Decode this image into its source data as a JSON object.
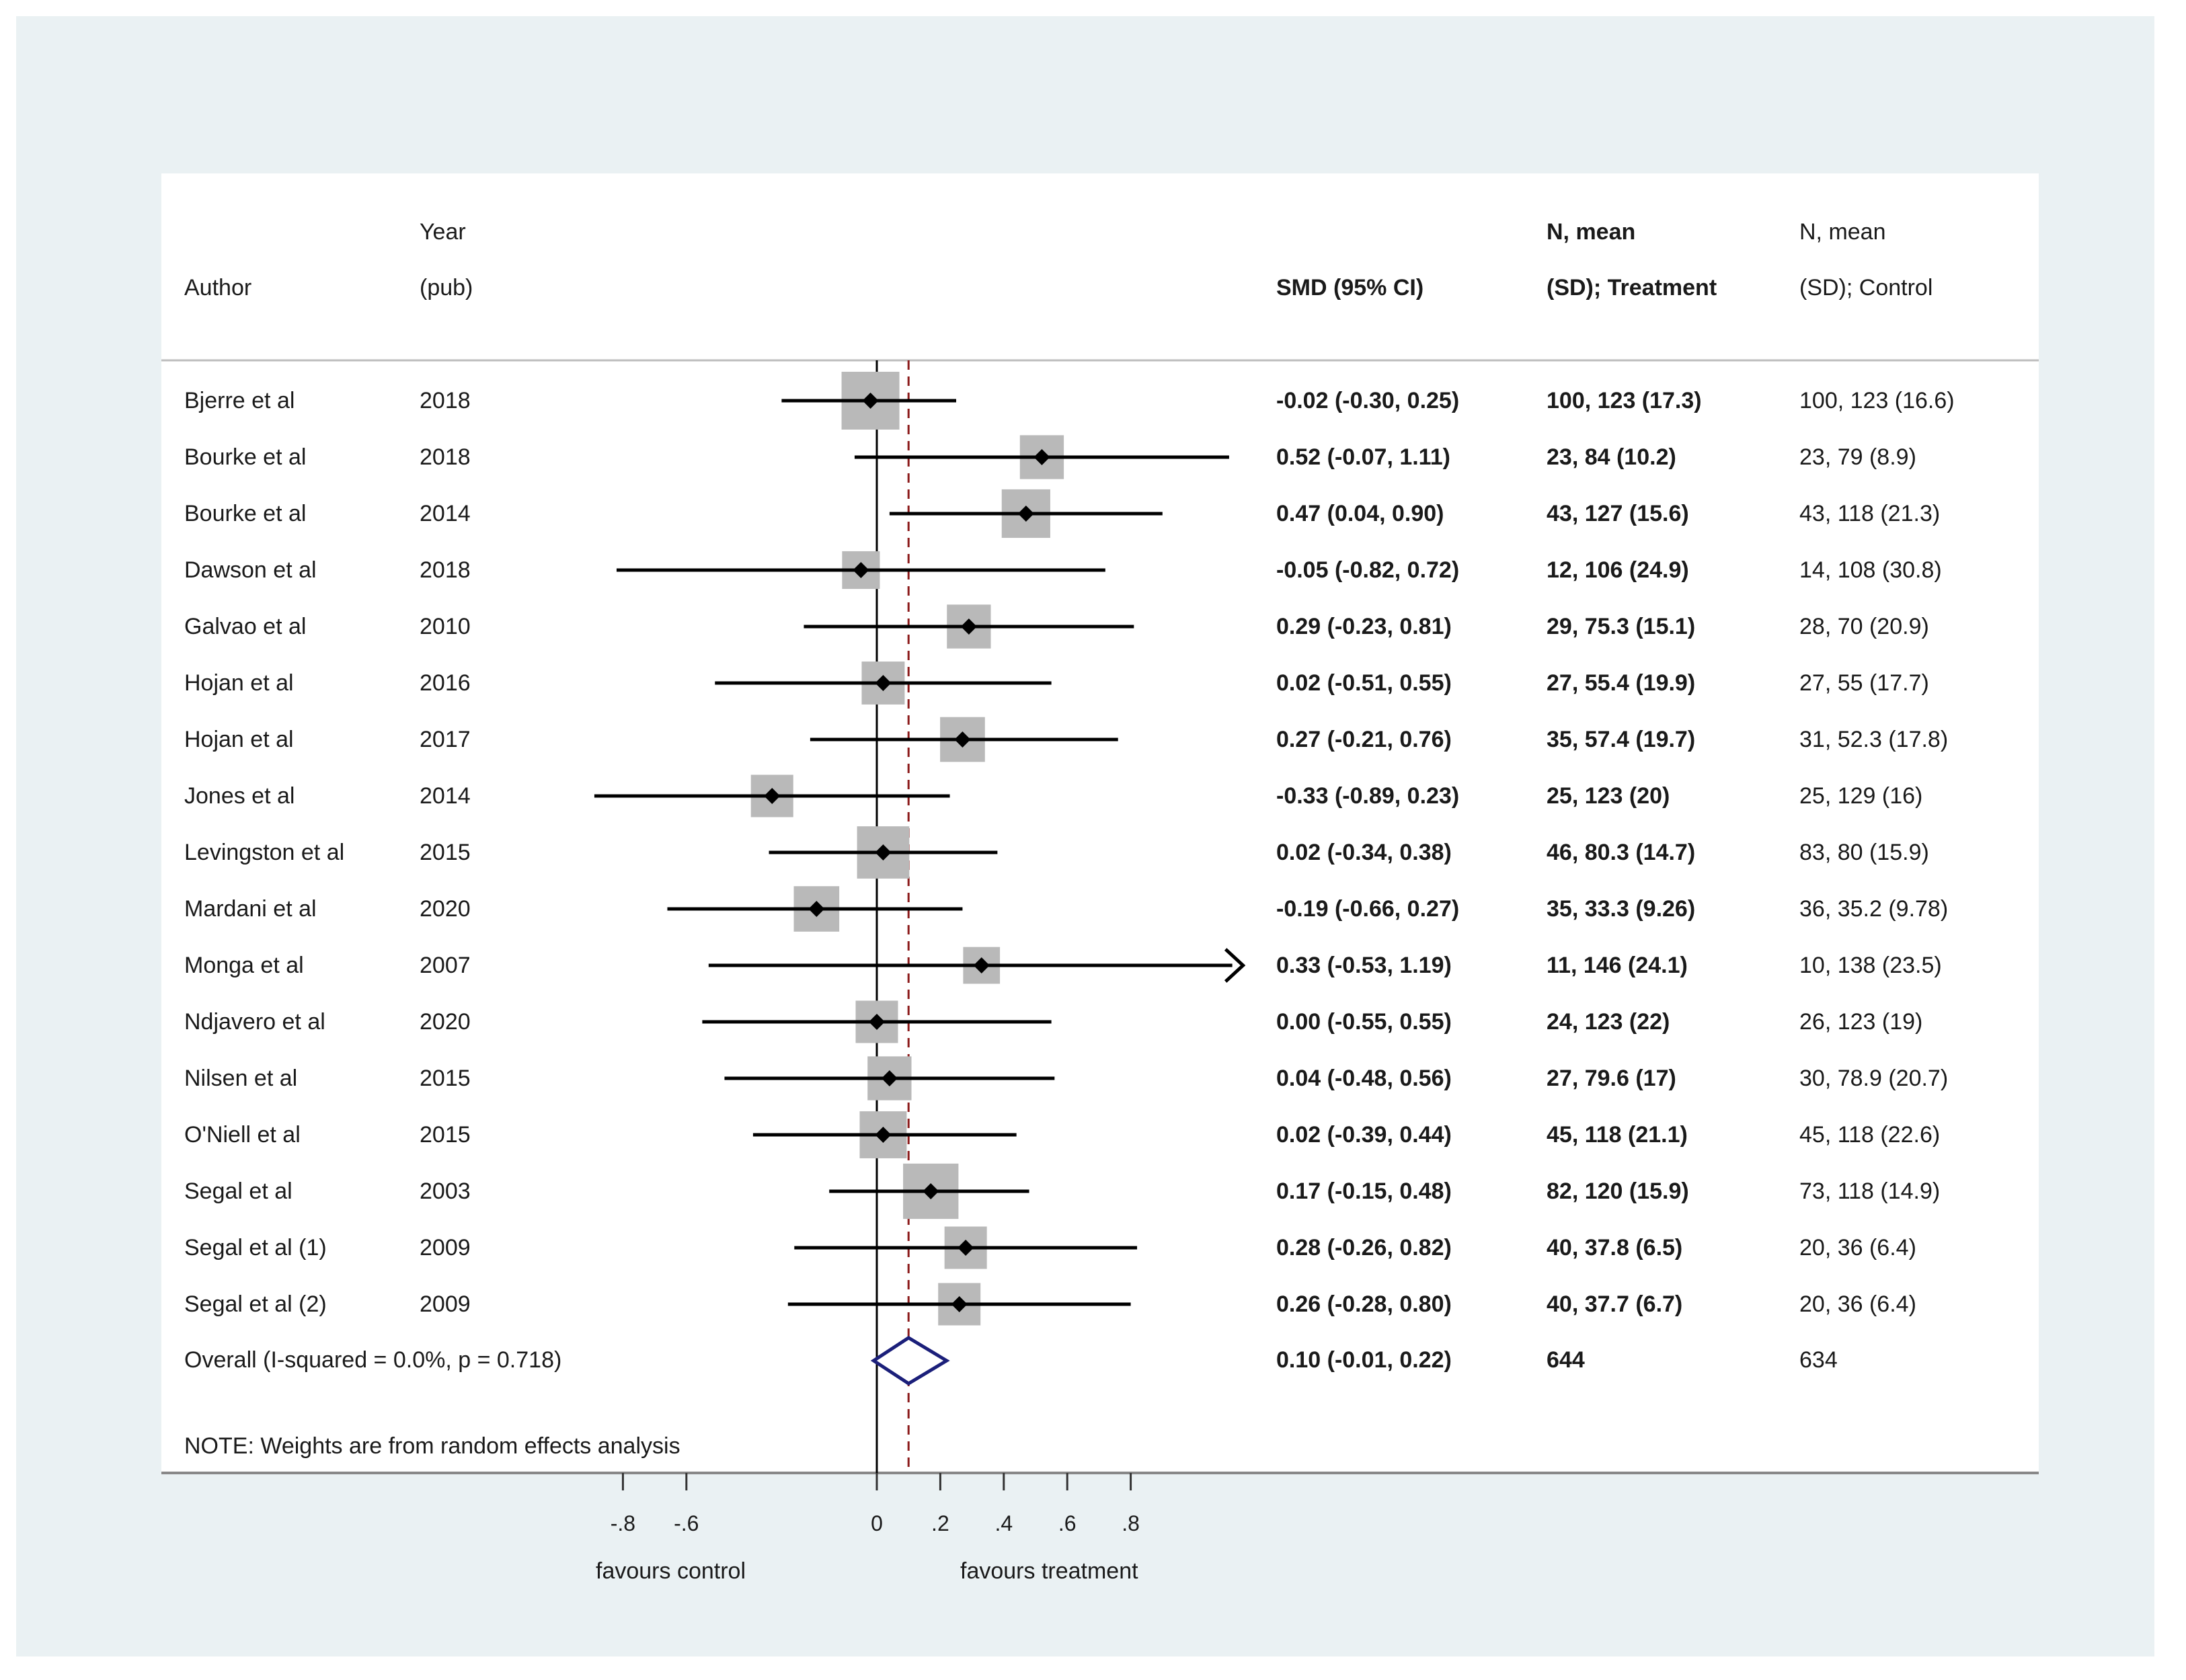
{
  "colors": {
    "background": "#eaf1f3",
    "panel": "#ffffff",
    "marker_box": "#b9b9b9",
    "line": "#000000",
    "reference_line": "#8b1a1a",
    "overall_diamond": "#1b1f7a"
  },
  "headers": {
    "author": "Author",
    "year_line1": "Year",
    "year_line2": "(pub)",
    "smd": "SMD (95% CI)",
    "treatment_line1": "N, mean",
    "treatment_line2": "(SD); Treatment",
    "control_line1": "N, mean",
    "control_line2": "(SD); Control"
  },
  "chart_data": {
    "type": "forest",
    "effect_measure": "SMD",
    "null_value": 0,
    "overall_reference_value": 0.1,
    "x_ticks": [
      -0.8,
      -0.6,
      0,
      0.2,
      0.4,
      0.6,
      0.8
    ],
    "x_tick_labels": [
      "-.8",
      "-.6",
      "0",
      ".2",
      ".4",
      ".6",
      ".8"
    ],
    "left_direction_label": "favours control",
    "right_direction_label": "favours treatment",
    "studies": [
      {
        "author": "Bjerre et al",
        "year": "2018",
        "smd": -0.02,
        "lower": -0.3,
        "upper": 0.25,
        "ci_text": "-0.02 (-0.30, 0.25)",
        "treatment": "100, 123 (17.3)",
        "control": "100, 123 (16.6)",
        "weight_rel": 1.0
      },
      {
        "author": "Bourke et al",
        "year": "2018",
        "smd": 0.52,
        "lower": -0.07,
        "upper": 1.11,
        "ci_text": "0.52 (-0.07, 1.11)",
        "treatment": "23, 84 (10.2)",
        "control": "23, 79 (8.9)",
        "weight_rel": 0.55
      },
      {
        "author": "Bourke et al",
        "year": "2014",
        "smd": 0.47,
        "lower": 0.04,
        "upper": 0.9,
        "ci_text": "0.47 (0.04, 0.90)",
        "treatment": "43, 127 (15.6)",
        "control": "43, 118 (21.3)",
        "weight_rel": 0.7
      },
      {
        "author": "Dawson et al",
        "year": "2018",
        "smd": -0.05,
        "lower": -0.82,
        "upper": 0.72,
        "ci_text": "-0.05 (-0.82, 0.72)",
        "treatment": "12, 106 (24.9)",
        "control": "14, 108 (30.8)",
        "weight_rel": 0.35
      },
      {
        "author": "Galvao et al",
        "year": "2010",
        "smd": 0.29,
        "lower": -0.23,
        "upper": 0.81,
        "ci_text": "0.29 (-0.23, 0.81)",
        "treatment": "29, 75.3 (15.1)",
        "control": "28, 70 (20.9)",
        "weight_rel": 0.55
      },
      {
        "author": "Hojan et al",
        "year": "2016",
        "smd": 0.02,
        "lower": -0.51,
        "upper": 0.55,
        "ci_text": "0.02 (-0.51, 0.55)",
        "treatment": "27, 55.4 (19.9)",
        "control": "27, 55 (17.7)",
        "weight_rel": 0.52
      },
      {
        "author": "Hojan et al",
        "year": "2017",
        "smd": 0.27,
        "lower": -0.21,
        "upper": 0.76,
        "ci_text": "0.27 (-0.21, 0.76)",
        "treatment": "35, 57.4 (19.7)",
        "control": "31, 52.3 (17.8)",
        "weight_rel": 0.58
      },
      {
        "author": "Jones et al",
        "year": "2014",
        "smd": -0.33,
        "lower": -0.89,
        "upper": 0.23,
        "ci_text": "-0.33 (-0.89, 0.23)",
        "treatment": "25, 123 (20)",
        "control": "25, 129 (16)",
        "weight_rel": 0.5
      },
      {
        "author": "Levingston et al",
        "year": "2015",
        "smd": 0.02,
        "lower": -0.34,
        "upper": 0.38,
        "ci_text": "0.02 (-0.34, 0.38)",
        "treatment": "46, 80.3 (14.7)",
        "control": "83, 80 (15.9)",
        "weight_rel": 0.82
      },
      {
        "author": "Mardani et al",
        "year": "2020",
        "smd": -0.19,
        "lower": -0.66,
        "upper": 0.27,
        "ci_text": "-0.19 (-0.66, 0.27)",
        "treatment": "35, 33.3 (9.26)",
        "control": "36, 35.2 (9.78)",
        "weight_rel": 0.6
      },
      {
        "author": "Monga et al",
        "year": "2007",
        "smd": 0.33,
        "lower": -0.53,
        "upper": 1.19,
        "ci_text": "0.33 (-0.53, 1.19)",
        "treatment": "11, 146 (24.1)",
        "control": "10, 138 (23.5)",
        "weight_rel": 0.32,
        "arrow_right": true
      },
      {
        "author": "Ndjavero et al",
        "year": "2020",
        "smd": 0.0,
        "lower": -0.55,
        "upper": 0.55,
        "ci_text": "0.00 (-0.55, 0.55)",
        "treatment": "24, 123 (22)",
        "control": "26, 123 (19)",
        "weight_rel": 0.5
      },
      {
        "author": "Nilsen et al",
        "year": "2015",
        "smd": 0.04,
        "lower": -0.48,
        "upper": 0.56,
        "ci_text": "0.04 (-0.48, 0.56)",
        "treatment": "27, 79.6 (17)",
        "control": "30, 78.9 (20.7)",
        "weight_rel": 0.55
      },
      {
        "author": "O'Niell et al",
        "year": "2015",
        "smd": 0.02,
        "lower": -0.39,
        "upper": 0.44,
        "ci_text": "0.02 (-0.39, 0.44)",
        "treatment": "45, 118 (21.1)",
        "control": "45, 118 (22.6)",
        "weight_rel": 0.65
      },
      {
        "author": "Segal et al",
        "year": "2003",
        "smd": 0.17,
        "lower": -0.15,
        "upper": 0.48,
        "ci_text": "0.17 (-0.15, 0.48)",
        "treatment": "82, 120 (15.9)",
        "control": "73, 118 (14.9)",
        "weight_rel": 0.92
      },
      {
        "author": "Segal et al (1)",
        "year": "2009",
        "smd": 0.28,
        "lower": -0.26,
        "upper": 0.82,
        "ci_text": "0.28 (-0.26, 0.82)",
        "treatment": "40, 37.8 (6.5)",
        "control": "20, 36 (6.4)",
        "weight_rel": 0.5
      },
      {
        "author": "Segal et al (2)",
        "year": "2009",
        "smd": 0.26,
        "lower": -0.28,
        "upper": 0.8,
        "ci_text": "0.26 (-0.28, 0.80)",
        "treatment": "40, 37.7 (6.7)",
        "control": "20, 36 (6.4)",
        "weight_rel": 0.5
      }
    ],
    "overall": {
      "label": "Overall  (I-squared = 0.0%, p = 0.718)",
      "smd": 0.1,
      "lower": -0.01,
      "upper": 0.22,
      "ci_text": "0.10 (-0.01, 0.22)",
      "treatment_n": "644",
      "control_n": "634"
    },
    "note": "NOTE: Weights are from random effects analysis"
  }
}
